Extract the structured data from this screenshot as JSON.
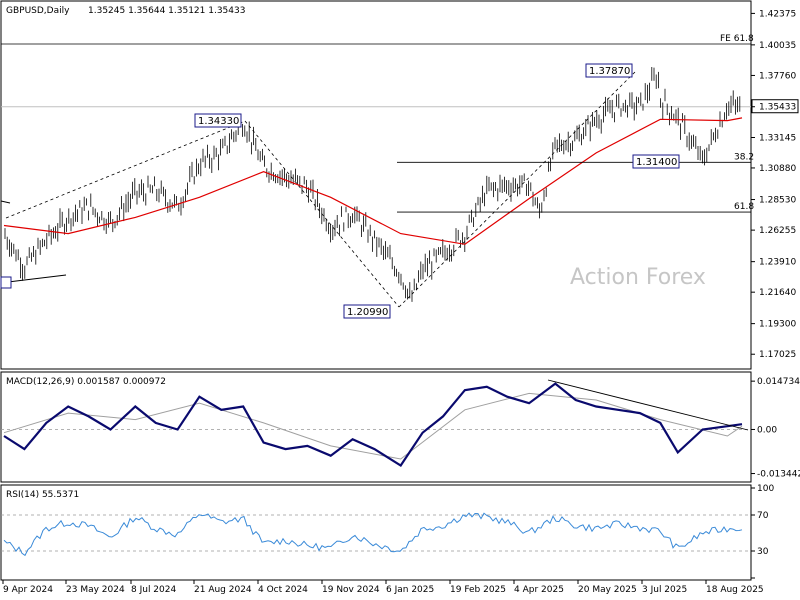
{
  "header": {
    "symbol": "GBPUSD,Daily",
    "ohlc": "1.35245 1.35644 1.35121 1.35433"
  },
  "watermark": "Action Forex",
  "colors": {
    "candle": "#000000",
    "ma": "#e00000",
    "macd": "#0a0a6e",
    "signal": "#a0a0a0",
    "rsi": "#3a8ad8",
    "grid_line": "#000000"
  },
  "chart_data": [
    {
      "type": "line",
      "panel": "price",
      "title": "GBPUSD,Daily",
      "ylim": [
        1.16,
        1.43
      ],
      "y_ticks": [
        "1.42375",
        "1.40035",
        "1.37760",
        "1.35433",
        "1.33145",
        "1.30880",
        "1.28530",
        "1.26255",
        "1.23910",
        "1.21640",
        "1.19300",
        "1.17025"
      ],
      "x_ticks": [
        "9 Apr 2024",
        "23 May 2024",
        "8 Jul 2024",
        "21 Aug 2024",
        "4 Oct 2024",
        "19 Nov 2024",
        "6 Jan 2025",
        "19 Feb 2025",
        "4 Apr 2025",
        "20 May 2025",
        "3 Jul 2025",
        "18 Aug 2025"
      ],
      "current_price": "1.35433",
      "series": [
        {
          "name": "",
          "x": [
            "9 Apr 2024",
            "23 Apr 2024",
            "8 May 2024",
            "23 May 2024",
            "6 Jun 2024",
            "21 Jun 2024",
            "8 Jul 2024",
            "22 Jul 2024",
            "6 Aug 2024",
            "21 Aug 2024",
            "5 Sep 2024",
            "20 Sep 2024",
            "4 Oct 2024",
            "19 Oct 2024",
            "3 Nov 2024",
            "19 Nov 2024",
            "4 Dec 2024",
            "19 Dec 2024",
            "6 Jan 2025",
            "13 Jan 2025",
            "21 Jan 2025",
            "4 Feb 2025",
            "19 Feb 2025",
            "6 Mar 2025",
            "20 Mar 2025",
            "4 Apr 2025",
            "11 Apr 2025",
            "22 Apr 2025",
            "6 May 2025",
            "20 May 2025",
            "4 Jun 2025",
            "19 Jun 2025",
            "1 Jul 2025",
            "3 Jul 2025",
            "15 Jul 2025",
            "1 Aug 2025",
            "18 Aug 2025",
            "28 Aug 2025"
          ],
          "values": [
            1.26,
            1.235,
            1.255,
            1.272,
            1.28,
            1.268,
            1.29,
            1.292,
            1.28,
            1.312,
            1.32,
            1.3433,
            1.31,
            1.302,
            1.295,
            1.265,
            1.275,
            1.255,
            1.23,
            1.2099,
            1.233,
            1.245,
            1.26,
            1.292,
            1.296,
            1.296,
            1.275,
            1.325,
            1.33,
            1.345,
            1.355,
            1.355,
            1.3787,
            1.36,
            1.345,
            1.314,
            1.355,
            1.3543
          ]
        },
        {
          "name": "",
          "x": [
            "9 Apr 2024",
            "23 May 2024",
            "8 Jul 2024",
            "21 Aug 2024",
            "4 Oct 2024",
            "19 Nov 2024",
            "6 Jan 2025",
            "19 Feb 2025",
            "4 Apr 2025",
            "20 May 2025",
            "3 Jul 2025",
            "18 Aug 2025",
            "28 Aug 2025"
          ],
          "values": [
            1.266,
            1.26,
            1.272,
            1.287,
            1.306,
            1.287,
            1.26,
            1.252,
            1.286,
            1.32,
            1.345,
            1.344,
            1.346
          ]
        }
      ],
      "annotations": [
        {
          "text": "1.34330"
        },
        {
          "text": "1.20990"
        },
        {
          "text": "1.37870"
        },
        {
          "text": "1.31400"
        },
        {
          "text": "FE 61.8",
          "y": 1.401
        },
        {
          "text": "38.2",
          "y": 1.313
        },
        {
          "text": "61.8",
          "y": 1.276
        }
      ]
    },
    {
      "type": "line",
      "panel": "macd",
      "title": "MACD(12,26,9) 0.001587 0.000972",
      "ylim": [
        -0.0148,
        0.016
      ],
      "y_ticks": [
        "0.014734",
        "0.00",
        "-0.013442"
      ],
      "series": [
        {
          "name": "",
          "x": [
            "9 Apr 2024",
            "23 Apr 2024",
            "8 May 2024",
            "23 May 2024",
            "6 Jun 2024",
            "21 Jun 2024",
            "8 Jul 2024",
            "22 Jul 2024",
            "6 Aug 2024",
            "21 Aug 2024",
            "5 Sep 2024",
            "20 Sep 2024",
            "4 Oct 2024",
            "19 Oct 2024",
            "3 Nov 2024",
            "19 Nov 2024",
            "4 Dec 2024",
            "19 Dec 2024",
            "6 Jan 2025",
            "21 Jan 2025",
            "4 Feb 2025",
            "19 Feb 2025",
            "6 Mar 2025",
            "20 Mar 2025",
            "4 Apr 2025",
            "22 Apr 2025",
            "6 May 2025",
            "20 May 2025",
            "4 Jun 2025",
            "19 Jun 2025",
            "3 Jul 2025",
            "15 Jul 2025",
            "1 Aug 2025",
            "18 Aug 2025",
            "28 Aug 2025"
          ],
          "values": [
            -0.002,
            -0.006,
            0.002,
            0.007,
            0.004,
            0.0,
            0.007,
            0.002,
            0.0,
            0.01,
            0.006,
            0.007,
            -0.004,
            -0.006,
            -0.005,
            -0.008,
            -0.003,
            -0.006,
            -0.011,
            -0.001,
            0.004,
            0.012,
            0.013,
            0.01,
            0.008,
            0.014,
            0.009,
            0.007,
            0.006,
            0.005,
            0.002,
            -0.007,
            0.0,
            0.001,
            0.0016
          ]
        },
        {
          "name": "",
          "x": [
            "9 Apr 2024",
            "23 May 2024",
            "8 Jul 2024",
            "21 Aug 2024",
            "4 Oct 2024",
            "19 Nov 2024",
            "6 Jan 2025",
            "19 Feb 2025",
            "4 Apr 2025",
            "20 May 2025",
            "3 Jul 2025",
            "18 Aug 2025",
            "28 Aug 2025"
          ],
          "values": [
            -0.001,
            0.005,
            0.003,
            0.008,
            0.002,
            -0.005,
            -0.009,
            0.006,
            0.011,
            0.009,
            0.003,
            -0.002,
            0.001
          ]
        }
      ]
    },
    {
      "type": "line",
      "panel": "rsi",
      "title": "RSI(14) 55.5371",
      "ylim": [
        0,
        100
      ],
      "y_ticks": [
        "100",
        "70",
        "30",
        "0"
      ],
      "levels": [
        70,
        30
      ],
      "series": [
        {
          "name": "",
          "x": [
            "9 Apr 2024",
            "23 Apr 2024",
            "8 May 2024",
            "23 May 2024",
            "6 Jun 2024",
            "21 Jun 2024",
            "8 Jul 2024",
            "22 Jul 2024",
            "6 Aug 2024",
            "21 Aug 2024",
            "5 Sep 2024",
            "20 Sep 2024",
            "4 Oct 2024",
            "19 Oct 2024",
            "3 Nov 2024",
            "19 Nov 2024",
            "4 Dec 2024",
            "19 Dec 2024",
            "6 Jan 2025",
            "21 Jan 2025",
            "4 Feb 2025",
            "19 Feb 2025",
            "6 Mar 2025",
            "20 Mar 2025",
            "4 Apr 2025",
            "22 Apr 2025",
            "6 May 2025",
            "20 May 2025",
            "4 Jun 2025",
            "19 Jun 2025",
            "3 Jul 2025",
            "15 Jul 2025",
            "1 Aug 2025",
            "18 Aug 2025",
            "28 Aug 2025"
          ],
          "values": [
            40,
            28,
            55,
            62,
            58,
            45,
            68,
            55,
            48,
            72,
            62,
            66,
            38,
            42,
            36,
            33,
            48,
            38,
            30,
            55,
            58,
            70,
            68,
            62,
            50,
            67,
            58,
            55,
            60,
            56,
            52,
            32,
            50,
            55,
            55.5
          ]
        }
      ]
    }
  ]
}
